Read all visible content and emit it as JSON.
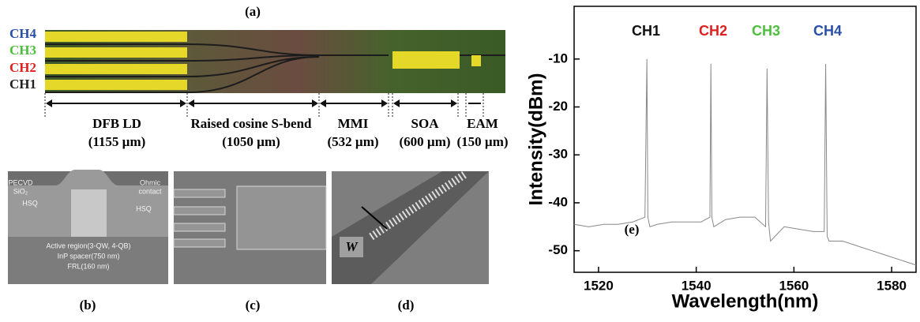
{
  "figure": {
    "label_a": "(a)",
    "label_b": "(b)",
    "label_c": "(c)",
    "label_d": "(d)",
    "channels": [
      {
        "text": "CH4",
        "color": "#2a4fa8"
      },
      {
        "text": "CH3",
        "color": "#4cbf3c"
      },
      {
        "text": "CH2",
        "color": "#e02020"
      },
      {
        "text": "CH1",
        "color": "#222222"
      }
    ],
    "sections": [
      {
        "name": "DFB LD",
        "length": "(1155 µm)"
      },
      {
        "name": "Raised cosine S-bend",
        "length": "(1050 µm)"
      },
      {
        "name": "MMI",
        "length": "(532 µm)"
      },
      {
        "name": "SOA",
        "length": "(600 µm)"
      },
      {
        "name": "EAM",
        "length": "(150 µm)"
      }
    ],
    "sem_b": [
      "PECVD",
      "SiO₂",
      "Ohmic",
      "contact",
      "HSQ",
      "HSQ",
      "Active region(3-QW, 4-QB)",
      "InP spacer(750 nm)",
      "FRL(160 nm)"
    ],
    "sem_d": "W"
  },
  "chart_data": {
    "type": "line",
    "x_label": "Wavelength(nm)",
    "y_label": "Intensity(dBm)",
    "panel_label": "(e)",
    "color": "#888888",
    "x": [
      1515,
      1518,
      1521,
      1524,
      1527,
      1529.5,
      1529.9,
      1530.1,
      1530.5,
      1532,
      1535,
      1538,
      1541,
      1542.8,
      1543.0,
      1543.2,
      1543.6,
      1546,
      1549,
      1552,
      1554.2,
      1554.5,
      1554.8,
      1555.2,
      1558,
      1561,
      1564,
      1566.2,
      1566.5,
      1566.8,
      1567.2,
      1570,
      1573,
      1576,
      1579,
      1582,
      1585
    ],
    "values": [
      -44.5,
      -45,
      -44.5,
      -44.5,
      -44,
      -43,
      -10,
      -43,
      -45,
      -44.5,
      -44,
      -44,
      -44,
      -43,
      -11,
      -43,
      -45,
      -43.5,
      -43,
      -43,
      -45,
      -12,
      -44,
      -48,
      -45,
      -45.5,
      -46,
      -46,
      -11,
      -47,
      -48,
      -48,
      -49,
      -50,
      -51,
      -52,
      -53
    ],
    "xlim": [
      1515,
      1585
    ],
    "ylim": [
      -54.5,
      1
    ],
    "xticks": [
      1520,
      1540,
      1560,
      1580
    ],
    "yticks": [
      -50,
      -40,
      -30,
      -20,
      -10
    ],
    "annotations": [
      {
        "text": "CH1",
        "color": "#111111"
      },
      {
        "text": "CH2",
        "color": "#e02020"
      },
      {
        "text": "CH3",
        "color": "#4cbf3c"
      },
      {
        "text": "CH4",
        "color": "#2a4fa8"
      }
    ]
  }
}
